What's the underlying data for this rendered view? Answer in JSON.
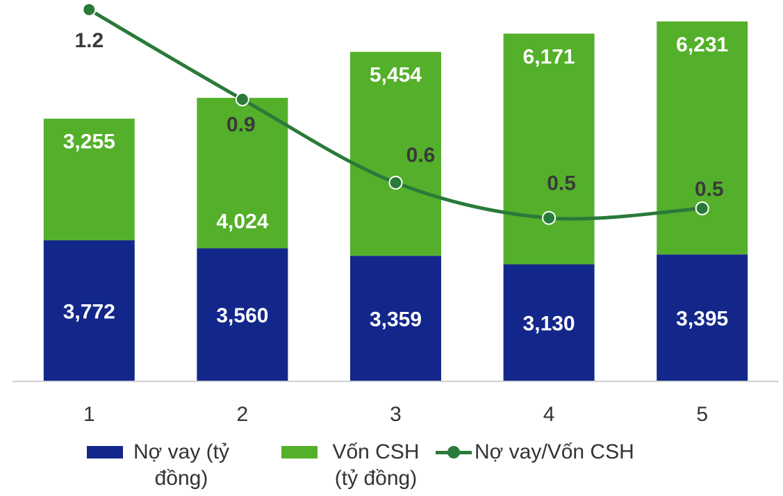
{
  "chart_data": {
    "type": "stacked-bar-line",
    "categories": [
      "1",
      "2",
      "3",
      "4",
      "5"
    ],
    "series": [
      {
        "name": "Nợ vay (tỷ đồng)",
        "color": "#13278b",
        "values": [
          3772,
          3560,
          3359,
          3130,
          3395
        ]
      },
      {
        "name": "Vốn CSH (tỷ đồng)",
        "color": "#54b02a",
        "values": [
          3255,
          4024,
          5454,
          6171,
          6231
        ]
      },
      {
        "name": "Nợ vay/Vốn CSH",
        "color": "#2a7a3a",
        "axis": "y2",
        "values": [
          1.16,
          0.88,
          0.62,
          0.51,
          0.54
        ],
        "value_labels": [
          "1.2",
          "0.9",
          "0.6",
          "0.5",
          "0.5"
        ]
      }
    ],
    "ylim": [
      0,
      10200
    ],
    "y2lim": [
      0,
      1.19
    ]
  }
}
